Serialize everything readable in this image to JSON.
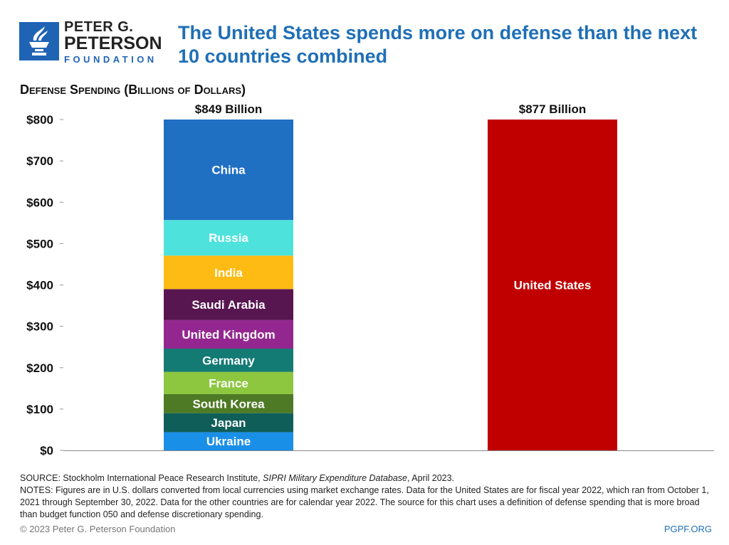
{
  "logo": {
    "line1": "PETER G.",
    "line2": "PETERSON",
    "line3": "FOUNDATION"
  },
  "title": "The United States spends more on defense than the next 10 countries combined",
  "colors": {
    "title": "#1f6fb6",
    "logo": "#1f63b4",
    "us": "#c00000"
  },
  "chart_data": {
    "type": "bar",
    "stacked": true,
    "title": "The United States spends more on defense than the next 10 countries combined",
    "ylabel": "Defense Spending (Billions of Dollars)",
    "ylim": [
      0,
      800
    ],
    "yticks": [
      "$0",
      "$100",
      "$200",
      "$300",
      "$400",
      "$500",
      "$600",
      "$700",
      "$800"
    ],
    "grid": false,
    "bars": [
      {
        "total_label": "$849 Billion",
        "segments": [
          {
            "name": "Ukraine",
            "value": 44,
            "color": "#1a8fe8"
          },
          {
            "name": "Japan",
            "value": 46,
            "color": "#0f5e5a"
          },
          {
            "name": "South Korea",
            "value": 46,
            "color": "#4e7a25"
          },
          {
            "name": "France",
            "value": 54,
            "color": "#8dc63f"
          },
          {
            "name": "Germany",
            "value": 56,
            "color": "#137a74"
          },
          {
            "name": "United Kingdom",
            "value": 69,
            "color": "#93278f"
          },
          {
            "name": "Saudi Arabia",
            "value": 75,
            "color": "#581650"
          },
          {
            "name": "India",
            "value": 81,
            "color": "#fdbb13"
          },
          {
            "name": "Russia",
            "value": 86,
            "color": "#4de3dc"
          },
          {
            "name": "China",
            "value": 292,
            "color": "#1f6fc2"
          }
        ]
      },
      {
        "total_label": "$877 Billion",
        "segments": [
          {
            "name": "United States",
            "value": 877,
            "color": "#c00000"
          }
        ]
      }
    ]
  },
  "footer": {
    "source_prefix": "SOURCE: Stockholm International Peace Research Institute, ",
    "source_italic": "SIPRI Military Expenditure Database",
    "source_suffix": ", April 2023.",
    "notes": "NOTES: Figures are in U.S. dollars converted from local currencies using market exchange rates. Data for the United States are for fiscal year 2022, which ran from October 1, 2021 through September 30, 2022. Data for the other countries are for calendar year 2022. The source for this chart uses a definition of defense spending that is more broad than budget function 050 and defense discretionary spending.",
    "copyright": "© 2023 Peter G. Peterson Foundation",
    "site": "PGPF.ORG"
  }
}
